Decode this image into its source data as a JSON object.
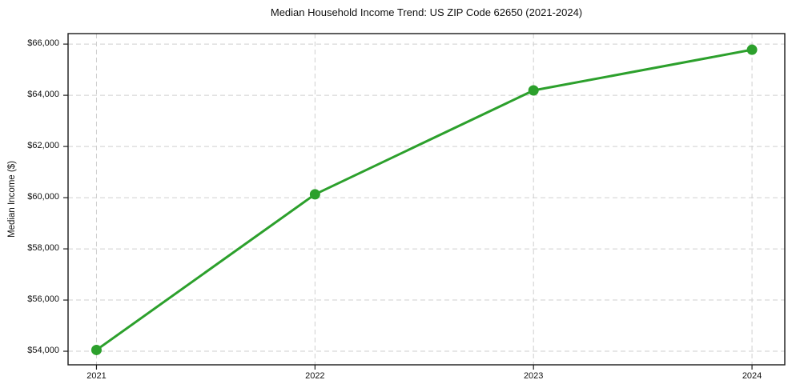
{
  "chart_data": {
    "type": "line",
    "title": "Median Household Income Trend: US ZIP Code 62650 (2021-2024)",
    "xlabel": "",
    "ylabel": "Median Income ($)",
    "x": [
      2021,
      2022,
      2023,
      2024
    ],
    "values": [
      54050,
      60130,
      64190,
      65780
    ],
    "x_tick_labels": [
      "2021",
      "2022",
      "2023",
      "2024"
    ],
    "y_ticks": [
      54000,
      56000,
      58000,
      60000,
      62000,
      64000,
      66000
    ],
    "y_tick_labels": [
      "$54,000",
      "$56,000",
      "$58,000",
      "$60,000",
      "$62,000",
      "$64,000",
      "$66,000"
    ],
    "xlim": [
      2020.87,
      2024.15
    ],
    "ylim": [
      53470,
      66410
    ],
    "grid": true,
    "grid_style": "dashed",
    "legend": false,
    "line_color": "#2ca02c",
    "line_width": 3,
    "marker": "circle",
    "marker_radius": 6.5,
    "grid_color": "#cfcfcf",
    "spine_color": "#1a1a1a",
    "text_color": "#111111",
    "background_color": "#ffffff"
  }
}
